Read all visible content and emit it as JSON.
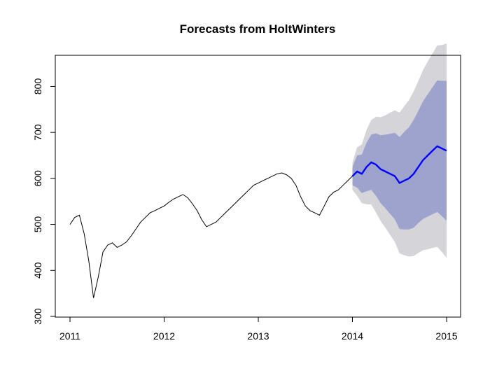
{
  "chart_data": {
    "type": "line",
    "title": "Forecasts from HoltWinters",
    "xlabel": "",
    "ylabel": "",
    "xlim": [
      2011,
      2015
    ],
    "ylim": [
      300,
      860
    ],
    "x_ticks": [
      2011,
      2012,
      2013,
      2014,
      2015
    ],
    "x_tick_labels": [
      "2011",
      "2012",
      "2013",
      "2014",
      "2015"
    ],
    "y_ticks": [
      300,
      400,
      500,
      600,
      700,
      800
    ],
    "y_tick_labels": [
      "300",
      "400",
      "500",
      "600",
      "700",
      "800"
    ],
    "grid": false,
    "legend": "none",
    "colors": {
      "history": "#000000",
      "forecast": "#0000ff",
      "band_80": "#9da3cc",
      "band_95": "#d4d4d9",
      "axes": "#000000"
    },
    "history": {
      "x": [
        2011.0,
        2011.05,
        2011.1,
        2011.15,
        2011.2,
        2011.25,
        2011.3,
        2011.35,
        2011.4,
        2011.45,
        2011.5,
        2011.55,
        2011.6,
        2011.65,
        2011.7,
        2011.75,
        2011.8,
        2011.85,
        2011.9,
        2011.95,
        2012.0,
        2012.05,
        2012.1,
        2012.15,
        2012.2,
        2012.25,
        2012.3,
        2012.35,
        2012.4,
        2012.45,
        2012.5,
        2012.55,
        2012.6,
        2012.65,
        2012.7,
        2012.75,
        2012.8,
        2012.85,
        2012.9,
        2012.95,
        2013.0,
        2013.05,
        2013.1,
        2013.15,
        2013.2,
        2013.25,
        2013.3,
        2013.35,
        2013.4,
        2013.45,
        2013.5,
        2013.55,
        2013.6,
        2013.65,
        2013.7,
        2013.75,
        2013.8,
        2013.85,
        2013.9,
        2013.95,
        2014.0
      ],
      "y": [
        500,
        515,
        520,
        480,
        420,
        340,
        385,
        440,
        455,
        460,
        450,
        455,
        462,
        475,
        490,
        505,
        515,
        525,
        530,
        535,
        540,
        548,
        555,
        560,
        565,
        558,
        545,
        530,
        510,
        495,
        500,
        505,
        515,
        525,
        535,
        545,
        555,
        565,
        575,
        585,
        590,
        595,
        600,
        605,
        610,
        612,
        608,
        600,
        585,
        560,
        540,
        530,
        525,
        520,
        540,
        560,
        570,
        575,
        585,
        595,
        605
      ]
    },
    "forecast": {
      "x": [
        2014.0,
        2014.05,
        2014.1,
        2014.15,
        2014.2,
        2014.25,
        2014.3,
        2014.35,
        2014.4,
        2014.45,
        2014.5,
        2014.55,
        2014.6,
        2014.65,
        2014.7,
        2014.75,
        2014.8,
        2014.85,
        2014.9,
        2014.95,
        2015.0
      ],
      "y": [
        605,
        615,
        610,
        625,
        635,
        630,
        620,
        615,
        610,
        605,
        590,
        595,
        600,
        610,
        625,
        640,
        650,
        660,
        670,
        665,
        660
      ],
      "lower_80": [
        585,
        580,
        568,
        572,
        575,
        562,
        546,
        535,
        523,
        511,
        490,
        489,
        489,
        493,
        503,
        512,
        517,
        522,
        527,
        518,
        508
      ],
      "upper_80": [
        625,
        650,
        652,
        678,
        695,
        698,
        694,
        695,
        697,
        699,
        690,
        701,
        711,
        727,
        747,
        768,
        783,
        798,
        813,
        812,
        812
      ],
      "lower_95": [
        575,
        562,
        546,
        544,
        543,
        526,
        507,
        493,
        477,
        462,
        437,
        433,
        430,
        431,
        438,
        444,
        446,
        449,
        451,
        440,
        427
      ],
      "upper_95": [
        635,
        668,
        674,
        706,
        727,
        734,
        733,
        737,
        743,
        748,
        743,
        757,
        770,
        789,
        812,
        836,
        854,
        871,
        889,
        890,
        893
      ]
    }
  }
}
